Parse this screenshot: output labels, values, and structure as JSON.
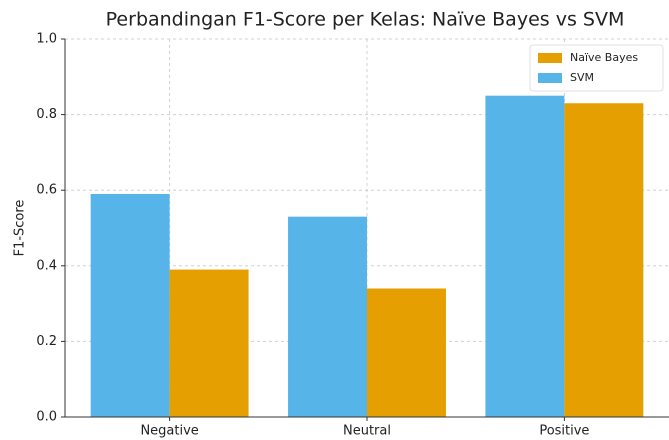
{
  "chart_data": {
    "type": "bar",
    "title": "Perbandingan F1-Score per Kelas: Naïve Bayes vs SVM",
    "ylabel": "F1-Score",
    "categories": [
      "Negative",
      "Neutral",
      "Positive"
    ],
    "series": [
      {
        "name": "SVM",
        "color": "#56b4e9",
        "values": [
          0.59,
          0.53,
          0.85
        ]
      },
      {
        "name": "Naïve Bayes",
        "color": "#e69f00",
        "values": [
          0.39,
          0.34,
          0.83
        ]
      }
    ],
    "ylim": [
      0,
      1
    ],
    "yticks": [
      {
        "value": 0,
        "label": "0.0"
      },
      0.2,
      0.4,
      0.6,
      0.8,
      {
        "value": 1,
        "label": "1.0"
      }
    ],
    "grid": true,
    "legend": "upper right"
  }
}
